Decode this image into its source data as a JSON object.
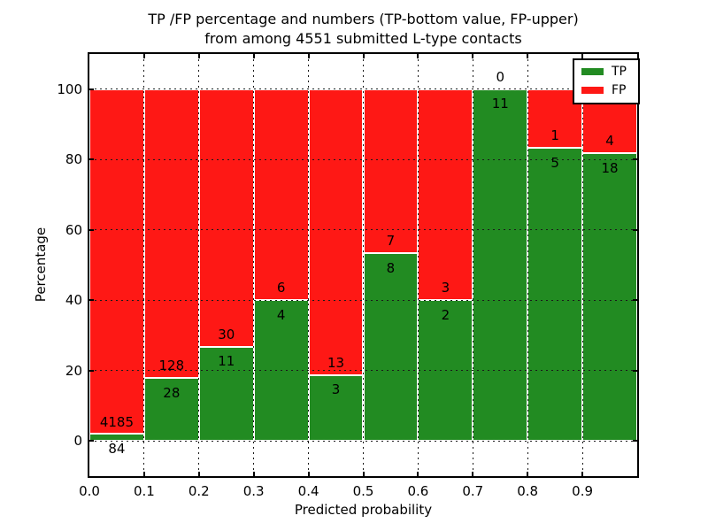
{
  "title": {
    "line1": "TP /FP percentage and numbers (TP-bottom value, FP-upper)",
    "line2": "from among 4551 submitted L-type contacts"
  },
  "axes": {
    "xlabel": "Predicted probability",
    "ylabel": "Percentage",
    "x_tick_labels": [
      "0.0",
      "0.1",
      "0.2",
      "0.3",
      "0.4",
      "0.5",
      "0.6",
      "0.7",
      "0.8",
      "0.9"
    ],
    "x_tick_values": [
      0.0,
      0.1,
      0.2,
      0.3,
      0.4,
      0.5,
      0.6,
      0.7,
      0.8,
      0.9
    ],
    "y_tick_labels": [
      "0",
      "20",
      "40",
      "60",
      "80",
      "100"
    ],
    "y_tick_values": [
      0,
      20,
      40,
      60,
      80,
      100
    ],
    "xlim": [
      0.0,
      1.0
    ],
    "ylim": [
      -10,
      110
    ],
    "grid_style": "dotted"
  },
  "legend": {
    "position": "upper-right",
    "items": [
      {
        "label": "TP",
        "color": "#228b22"
      },
      {
        "label": "FP",
        "color": "#fe1815"
      }
    ]
  },
  "chart_data": {
    "type": "bar",
    "stacked": true,
    "normalized_to_percent": 100,
    "title": "TP /FP percentage and numbers (TP-bottom value, FP-upper) from among 4551 submitted L-type contacts",
    "xlabel": "Predicted probability",
    "ylabel": "Percentage",
    "total_contacts": 4551,
    "bin_width": 0.1,
    "categories": [
      "0.0-0.1",
      "0.1-0.2",
      "0.2-0.3",
      "0.3-0.4",
      "0.4-0.5",
      "0.5-0.6",
      "0.6-0.7",
      "0.7-0.8",
      "0.8-0.9",
      "0.9-1.0"
    ],
    "series": [
      {
        "name": "TP",
        "color": "#228b22",
        "counts": [
          84,
          28,
          11,
          4,
          3,
          8,
          2,
          11,
          5,
          18
        ]
      },
      {
        "name": "FP",
        "color": "#fe1815",
        "counts": [
          4185,
          128,
          30,
          6,
          13,
          7,
          3,
          0,
          1,
          4
        ]
      }
    ],
    "tp_percent": [
      2.0,
      17.9,
      26.8,
      40.0,
      18.8,
      53.3,
      40.0,
      100.0,
      83.3,
      81.8
    ],
    "ylim": [
      -10,
      110
    ],
    "grid": true,
    "legend_position": "upper-right"
  }
}
